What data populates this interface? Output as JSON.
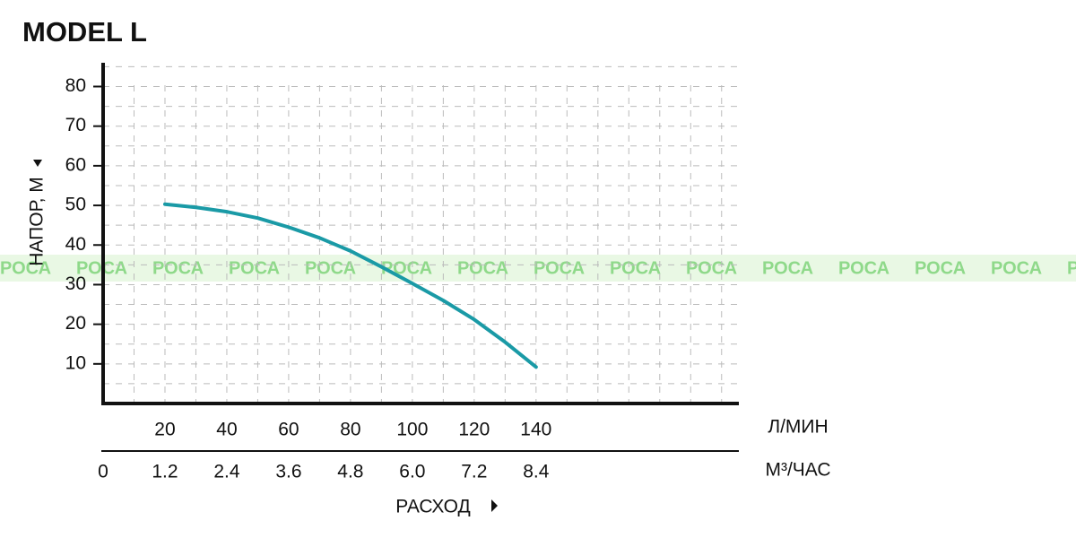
{
  "chart_data": {
    "type": "line",
    "title": "MODEL L",
    "x_label": "РАСХОД",
    "y_label": "НАПОР, М",
    "x_unit": "Л/МИН",
    "x2_unit": "М³/ЧАС",
    "watermark": "РОСА",
    "x": [
      20,
      30,
      40,
      50,
      60,
      70,
      80,
      90,
      100,
      110,
      120,
      130,
      140
    ],
    "series": [
      {
        "name": "MODEL L",
        "color": "#1a9aa6",
        "values": [
          50.3,
          49.5,
          48.4,
          46.8,
          44.5,
          41.8,
          38.5,
          34.5,
          30.3,
          26,
          21.2,
          15.5,
          9.2
        ]
      }
    ],
    "xlim": [
      0,
      205
    ],
    "xticks": [
      20,
      40,
      60,
      80,
      100,
      120,
      140
    ],
    "x2lim": [
      0,
      12.3
    ],
    "x2ticks": [
      0,
      1.2,
      2.4,
      3.6,
      4.8,
      {
        "value": 6,
        "label": "6.0"
      },
      7.2,
      8.4
    ],
    "ylim": [
      0,
      86
    ],
    "yticks": [
      10,
      20,
      30,
      40,
      50,
      60,
      70,
      80
    ],
    "grid": true
  }
}
